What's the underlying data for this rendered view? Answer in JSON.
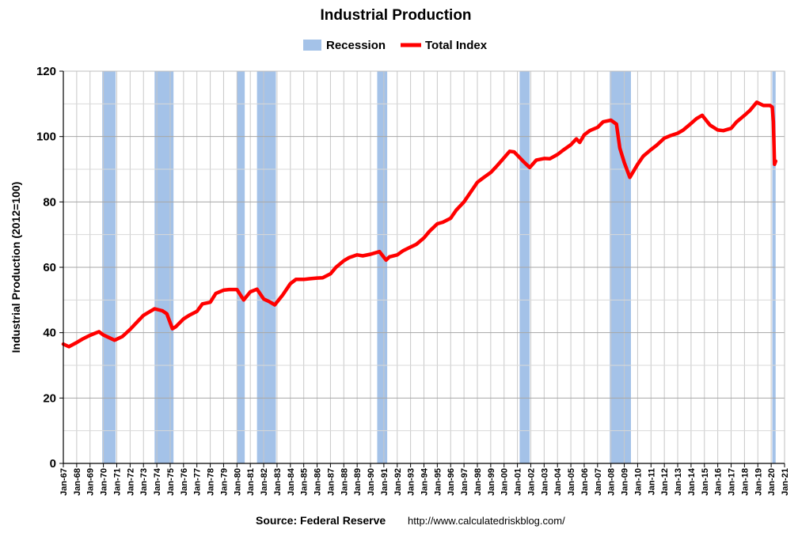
{
  "chart_data": {
    "type": "line",
    "title": "Industrial Production",
    "ylabel": "Industrial Production (2012=100)",
    "xlabel": "",
    "ylim": [
      0,
      120
    ],
    "yticks": [
      0,
      20,
      40,
      60,
      80,
      100,
      120
    ],
    "xlim": [
      "1967-01",
      "2021-01"
    ],
    "xtick_labels": [
      "Jan-67",
      "Jan-68",
      "Jan-69",
      "Jan-70",
      "Jan-71",
      "Jan-72",
      "Jan-73",
      "Jan-74",
      "Jan-75",
      "Jan-76",
      "Jan-77",
      "Jan-78",
      "Jan-79",
      "Jan-80",
      "Jan-81",
      "Jan-82",
      "Jan-83",
      "Jan-84",
      "Jan-85",
      "Jan-86",
      "Jan-87",
      "Jan-88",
      "Jan-89",
      "Jan-90",
      "Jan-91",
      "Jan-92",
      "Jan-93",
      "Jan-94",
      "Jan-95",
      "Jan-96",
      "Jan-97",
      "Jan-98",
      "Jan-99",
      "Jan-00",
      "Jan-01",
      "Jan-02",
      "Jan-03",
      "Jan-04",
      "Jan-05",
      "Jan-06",
      "Jan-07",
      "Jan-08",
      "Jan-09",
      "Jan-10",
      "Jan-11",
      "Jan-12",
      "Jan-13",
      "Jan-14",
      "Jan-15",
      "Jan-16",
      "Jan-17",
      "Jan-18",
      "Jan-19",
      "Jan-20",
      "Jan-21"
    ],
    "grid": true,
    "legend_position": "top-center",
    "legend": [
      {
        "name": "Recession",
        "color": "#a4c2e8",
        "kind": "band"
      },
      {
        "name": "Total Index",
        "color": "#ff0000",
        "kind": "line"
      }
    ],
    "recessions": [
      {
        "start": "1969-12",
        "end": "1970-11"
      },
      {
        "start": "1973-11",
        "end": "1975-03"
      },
      {
        "start": "1980-01",
        "end": "1980-07"
      },
      {
        "start": "1981-07",
        "end": "1982-11"
      },
      {
        "start": "1990-07",
        "end": "1991-03"
      },
      {
        "start": "2001-03",
        "end": "2001-11"
      },
      {
        "start": "2007-12",
        "end": "2009-06"
      },
      {
        "start": "2020-02",
        "end": "2020-04"
      }
    ],
    "series": [
      {
        "name": "Total Index",
        "color": "#ff0000",
        "points": [
          [
            "1967-01",
            36.5
          ],
          [
            "1967-06",
            35.7
          ],
          [
            "1968-01",
            37.0
          ],
          [
            "1968-06",
            38.0
          ],
          [
            "1969-01",
            39.2
          ],
          [
            "1969-09",
            40.3
          ],
          [
            "1970-01",
            39.3
          ],
          [
            "1970-11",
            37.7
          ],
          [
            "1971-06",
            38.8
          ],
          [
            "1972-01",
            41.0
          ],
          [
            "1972-06",
            42.8
          ],
          [
            "1973-01",
            45.3
          ],
          [
            "1973-06",
            46.3
          ],
          [
            "1973-11",
            47.3
          ],
          [
            "1974-06",
            46.7
          ],
          [
            "1974-10",
            45.8
          ],
          [
            "1975-03",
            41.2
          ],
          [
            "1975-06",
            41.8
          ],
          [
            "1976-01",
            44.2
          ],
          [
            "1976-06",
            45.3
          ],
          [
            "1977-01",
            46.5
          ],
          [
            "1977-06",
            48.8
          ],
          [
            "1978-01",
            49.3
          ],
          [
            "1978-06",
            52.0
          ],
          [
            "1979-01",
            53.0
          ],
          [
            "1979-06",
            53.2
          ],
          [
            "1980-01",
            53.2
          ],
          [
            "1980-07",
            50.0
          ],
          [
            "1981-01",
            52.5
          ],
          [
            "1981-07",
            53.3
          ],
          [
            "1982-01",
            50.3
          ],
          [
            "1982-06",
            49.5
          ],
          [
            "1982-11",
            48.5
          ],
          [
            "1983-06",
            51.5
          ],
          [
            "1984-01",
            55.0
          ],
          [
            "1984-06",
            56.3
          ],
          [
            "1985-01",
            56.3
          ],
          [
            "1985-06",
            56.5
          ],
          [
            "1986-01",
            56.7
          ],
          [
            "1986-06",
            56.8
          ],
          [
            "1987-01",
            58.0
          ],
          [
            "1987-06",
            60.0
          ],
          [
            "1988-01",
            62.0
          ],
          [
            "1988-06",
            63.0
          ],
          [
            "1989-01",
            63.8
          ],
          [
            "1989-06",
            63.5
          ],
          [
            "1990-01",
            64.0
          ],
          [
            "1990-09",
            64.8
          ],
          [
            "1991-03",
            62.2
          ],
          [
            "1991-06",
            63.2
          ],
          [
            "1992-01",
            63.8
          ],
          [
            "1992-06",
            65.0
          ],
          [
            "1993-01",
            66.2
          ],
          [
            "1993-06",
            67.0
          ],
          [
            "1994-01",
            69.0
          ],
          [
            "1994-06",
            71.0
          ],
          [
            "1995-01",
            73.3
          ],
          [
            "1995-06",
            73.8
          ],
          [
            "1996-01",
            75.0
          ],
          [
            "1996-06",
            77.5
          ],
          [
            "1997-01",
            80.0
          ],
          [
            "1997-06",
            82.5
          ],
          [
            "1998-01",
            86.0
          ],
          [
            "1998-06",
            87.3
          ],
          [
            "1999-01",
            89.0
          ],
          [
            "1999-06",
            90.8
          ],
          [
            "2000-01",
            93.5
          ],
          [
            "2000-06",
            95.5
          ],
          [
            "2000-10",
            95.3
          ],
          [
            "2001-06",
            92.5
          ],
          [
            "2001-12",
            90.5
          ],
          [
            "2002-06",
            92.8
          ],
          [
            "2003-01",
            93.3
          ],
          [
            "2003-06",
            93.2
          ],
          [
            "2004-01",
            94.5
          ],
          [
            "2004-06",
            95.8
          ],
          [
            "2005-01",
            97.5
          ],
          [
            "2005-06",
            99.3
          ],
          [
            "2005-09",
            98.2
          ],
          [
            "2006-01",
            100.5
          ],
          [
            "2006-06",
            101.8
          ],
          [
            "2007-01",
            102.8
          ],
          [
            "2007-06",
            104.5
          ],
          [
            "2008-01",
            105.0
          ],
          [
            "2008-06",
            103.8
          ],
          [
            "2008-09",
            96.5
          ],
          [
            "2009-01",
            92.0
          ],
          [
            "2009-06",
            87.5
          ],
          [
            "2010-01",
            91.5
          ],
          [
            "2010-06",
            94.0
          ],
          [
            "2011-01",
            96.0
          ],
          [
            "2011-06",
            97.3
          ],
          [
            "2012-01",
            99.5
          ],
          [
            "2012-06",
            100.2
          ],
          [
            "2013-01",
            101.0
          ],
          [
            "2013-06",
            102.0
          ],
          [
            "2014-01",
            104.0
          ],
          [
            "2014-06",
            105.5
          ],
          [
            "2014-11",
            106.5
          ],
          [
            "2015-06",
            103.5
          ],
          [
            "2016-01",
            102.0
          ],
          [
            "2016-06",
            101.8
          ],
          [
            "2017-01",
            102.5
          ],
          [
            "2017-06",
            104.5
          ],
          [
            "2018-01",
            106.5
          ],
          [
            "2018-06",
            108.0
          ],
          [
            "2018-12",
            110.5
          ],
          [
            "2019-06",
            109.5
          ],
          [
            "2019-12",
            109.5
          ],
          [
            "2020-02",
            109.0
          ],
          [
            "2020-03",
            104.5
          ],
          [
            "2020-04",
            91.5
          ],
          [
            "2020-05",
            92.5
          ]
        ]
      }
    ]
  },
  "source": {
    "label": "Source: Federal Reserve",
    "url": "http://www.calculatedriskblog.com/"
  }
}
